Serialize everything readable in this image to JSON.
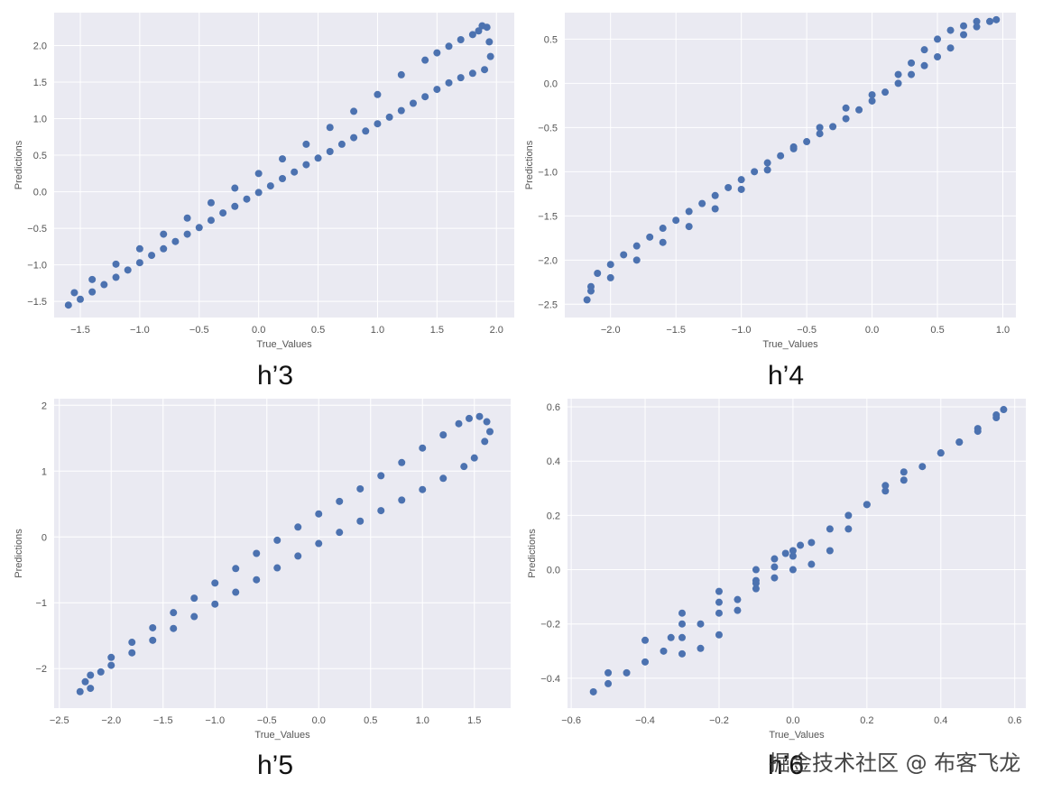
{
  "captions": [
    "h’3",
    "h’4",
    "h’5",
    "h’6"
  ],
  "watermark": "掘金技术社区 @ 布客飞龙",
  "style": {
    "panel_bg": "#eaeaf2",
    "grid": "#ffffff",
    "marker": "#4c72b0",
    "tick_text": "#555555"
  },
  "chart_data": [
    {
      "type": "scatter",
      "title": "",
      "xlabel": "True_Values",
      "ylabel": "Predictions",
      "xlim": [
        -1.72,
        2.15
      ],
      "ylim": [
        -1.72,
        2.45
      ],
      "xticks": [
        -1.5,
        -1.0,
        -0.5,
        0.0,
        0.5,
        1.0,
        1.5,
        2.0
      ],
      "xtick_labels": [
        "−1.5",
        "−1.0",
        "−0.5",
        "0.0",
        "0.5",
        "1.0",
        "1.5",
        "2.0"
      ],
      "yticks": [
        -1.5,
        -1.0,
        -0.5,
        0.0,
        0.5,
        1.0,
        1.5,
        2.0
      ],
      "ytick_labels": [
        "−1.5",
        "−1.0",
        "−0.5",
        "0.0",
        "0.5",
        "1.0",
        "1.5",
        "2.0"
      ],
      "grid": true,
      "series": [
        {
          "points": [
            [
              -1.6,
              -1.55
            ],
            [
              -1.5,
              -1.47
            ],
            [
              -1.4,
              -1.37
            ],
            [
              -1.3,
              -1.27
            ],
            [
              -1.2,
              -1.17
            ],
            [
              -1.1,
              -1.07
            ],
            [
              -1.0,
              -0.97
            ],
            [
              -0.9,
              -0.87
            ],
            [
              -0.8,
              -0.78
            ],
            [
              -0.7,
              -0.68
            ],
            [
              -0.6,
              -0.58
            ],
            [
              -0.5,
              -0.49
            ],
            [
              -0.4,
              -0.39
            ],
            [
              -0.3,
              -0.29
            ],
            [
              -0.2,
              -0.2
            ],
            [
              -0.1,
              -0.1
            ],
            [
              0.0,
              -0.01
            ],
            [
              0.1,
              0.08
            ],
            [
              0.2,
              0.18
            ],
            [
              0.3,
              0.27
            ],
            [
              0.4,
              0.37
            ],
            [
              0.5,
              0.46
            ],
            [
              0.6,
              0.55
            ],
            [
              0.7,
              0.65
            ],
            [
              0.8,
              0.74
            ],
            [
              0.9,
              0.83
            ],
            [
              1.0,
              0.93
            ],
            [
              1.1,
              1.02
            ],
            [
              1.2,
              1.11
            ],
            [
              1.3,
              1.21
            ],
            [
              1.4,
              1.3
            ],
            [
              1.5,
              1.4
            ],
            [
              1.6,
              1.49
            ],
            [
              1.7,
              1.56
            ],
            [
              1.8,
              1.62
            ],
            [
              1.9,
              1.67
            ],
            [
              1.95,
              1.85
            ],
            [
              1.94,
              2.05
            ],
            [
              1.92,
              2.25
            ],
            [
              1.88,
              2.27
            ],
            [
              1.85,
              2.2
            ],
            [
              1.8,
              2.15
            ],
            [
              1.7,
              2.08
            ],
            [
              1.6,
              1.99
            ],
            [
              1.5,
              1.9
            ],
            [
              1.4,
              1.8
            ],
            [
              1.2,
              1.6
            ],
            [
              1.0,
              1.33
            ],
            [
              0.8,
              1.1
            ],
            [
              0.6,
              0.88
            ],
            [
              0.4,
              0.65
            ],
            [
              0.2,
              0.45
            ],
            [
              0.0,
              0.25
            ],
            [
              -0.2,
              0.05
            ],
            [
              -0.4,
              -0.15
            ],
            [
              -0.6,
              -0.36
            ],
            [
              -0.8,
              -0.58
            ],
            [
              -1.0,
              -0.78
            ],
            [
              -1.2,
              -0.99
            ],
            [
              -1.4,
              -1.2
            ],
            [
              -1.55,
              -1.38
            ]
          ]
        }
      ]
    },
    {
      "type": "scatter",
      "title": "",
      "xlabel": "True_Values",
      "ylabel": "Predictions",
      "xlim": [
        -2.35,
        1.1
      ],
      "ylim": [
        -2.65,
        0.8
      ],
      "xticks": [
        -2.0,
        -1.5,
        -1.0,
        -0.5,
        0.0,
        0.5,
        1.0
      ],
      "xtick_labels": [
        "−2.0",
        "−1.5",
        "−1.0",
        "−0.5",
        "0.0",
        "0.5",
        "1.0"
      ],
      "yticks": [
        -2.5,
        -2.0,
        -1.5,
        -1.0,
        -0.5,
        0.0,
        0.5
      ],
      "ytick_labels": [
        "−2.5",
        "−2.0",
        "−1.5",
        "−1.0",
        "−0.5",
        "0.0",
        "0.5"
      ],
      "grid": true,
      "series": [
        {
          "points": [
            [
              -2.18,
              -2.45
            ],
            [
              -2.15,
              -2.3
            ],
            [
              -2.1,
              -2.15
            ],
            [
              -2.0,
              -2.05
            ],
            [
              -1.9,
              -1.94
            ],
            [
              -1.8,
              -1.84
            ],
            [
              -1.7,
              -1.74
            ],
            [
              -1.6,
              -1.64
            ],
            [
              -1.5,
              -1.55
            ],
            [
              -1.4,
              -1.45
            ],
            [
              -1.3,
              -1.36
            ],
            [
              -1.2,
              -1.27
            ],
            [
              -1.1,
              -1.18
            ],
            [
              -1.0,
              -1.09
            ],
            [
              -0.9,
              -1.0
            ],
            [
              -0.8,
              -0.9
            ],
            [
              -0.7,
              -0.82
            ],
            [
              -0.6,
              -0.74
            ],
            [
              -0.5,
              -0.66
            ],
            [
              -0.4,
              -0.57
            ],
            [
              -0.3,
              -0.49
            ],
            [
              -0.2,
              -0.4
            ],
            [
              -0.1,
              -0.3
            ],
            [
              0.0,
              -0.2
            ],
            [
              0.1,
              -0.1
            ],
            [
              0.2,
              0.0
            ],
            [
              0.3,
              0.1
            ],
            [
              0.4,
              0.2
            ],
            [
              0.5,
              0.3
            ],
            [
              0.6,
              0.4
            ],
            [
              0.7,
              0.55
            ],
            [
              0.8,
              0.64
            ],
            [
              0.9,
              0.7
            ],
            [
              0.95,
              0.72
            ],
            [
              0.8,
              0.7
            ],
            [
              0.7,
              0.65
            ],
            [
              0.6,
              0.6
            ],
            [
              0.5,
              0.5
            ],
            [
              0.4,
              0.38
            ],
            [
              0.3,
              0.23
            ],
            [
              0.2,
              0.1
            ],
            [
              0.0,
              -0.13
            ],
            [
              -0.2,
              -0.28
            ],
            [
              -0.4,
              -0.5
            ],
            [
              -0.6,
              -0.72
            ],
            [
              -0.8,
              -0.98
            ],
            [
              -1.0,
              -1.2
            ],
            [
              -1.2,
              -1.42
            ],
            [
              -1.4,
              -1.62
            ],
            [
              -1.6,
              -1.8
            ],
            [
              -1.8,
              -2.0
            ],
            [
              -2.0,
              -2.2
            ],
            [
              -2.15,
              -2.35
            ]
          ]
        }
      ]
    },
    {
      "type": "scatter",
      "title": "",
      "xlabel": "True_Values",
      "ylabel": "Predictions",
      "xlim": [
        -2.55,
        1.85
      ],
      "ylim": [
        -2.6,
        2.1
      ],
      "xticks": [
        -2.5,
        -2.0,
        -1.5,
        -1.0,
        -0.5,
        0.0,
        0.5,
        1.0,
        1.5
      ],
      "xtick_labels": [
        "−2.5",
        "−2.0",
        "−1.5",
        "−1.0",
        "−0.5",
        "0.0",
        "0.5",
        "1.0",
        "1.5"
      ],
      "yticks": [
        -2,
        -1,
        0,
        1,
        2
      ],
      "ytick_labels": [
        "−2",
        "−1",
        "0",
        "1",
        "2"
      ],
      "grid": true,
      "series": [
        {
          "points": [
            [
              -2.3,
              -2.35
            ],
            [
              -2.25,
              -2.2
            ],
            [
              -2.2,
              -2.1
            ],
            [
              -2.0,
              -1.95
            ],
            [
              -1.8,
              -1.76
            ],
            [
              -1.6,
              -1.57
            ],
            [
              -1.4,
              -1.39
            ],
            [
              -1.2,
              -1.21
            ],
            [
              -1.0,
              -1.02
            ],
            [
              -0.8,
              -0.84
            ],
            [
              -0.6,
              -0.65
            ],
            [
              -0.4,
              -0.47
            ],
            [
              -0.2,
              -0.29
            ],
            [
              0.0,
              -0.1
            ],
            [
              0.2,
              0.07
            ],
            [
              0.4,
              0.24
            ],
            [
              0.6,
              0.4
            ],
            [
              0.8,
              0.56
            ],
            [
              1.0,
              0.72
            ],
            [
              1.2,
              0.89
            ],
            [
              1.4,
              1.07
            ],
            [
              1.5,
              1.2
            ],
            [
              1.6,
              1.45
            ],
            [
              1.65,
              1.6
            ],
            [
              1.62,
              1.75
            ],
            [
              1.55,
              1.83
            ],
            [
              1.45,
              1.8
            ],
            [
              1.35,
              1.72
            ],
            [
              1.2,
              1.55
            ],
            [
              1.0,
              1.35
            ],
            [
              0.8,
              1.13
            ],
            [
              0.6,
              0.93
            ],
            [
              0.4,
              0.73
            ],
            [
              0.2,
              0.54
            ],
            [
              0.0,
              0.35
            ],
            [
              -0.2,
              0.15
            ],
            [
              -0.4,
              -0.05
            ],
            [
              -0.6,
              -0.25
            ],
            [
              -0.8,
              -0.48
            ],
            [
              -1.0,
              -0.7
            ],
            [
              -1.2,
              -0.93
            ],
            [
              -1.4,
              -1.15
            ],
            [
              -1.6,
              -1.38
            ],
            [
              -1.8,
              -1.6
            ],
            [
              -2.0,
              -1.83
            ],
            [
              -2.1,
              -2.05
            ],
            [
              -2.2,
              -2.3
            ]
          ]
        }
      ]
    },
    {
      "type": "scatter",
      "title": "",
      "xlabel": "True_Values",
      "ylabel": "Predictions",
      "xlim": [
        -0.61,
        0.63
      ],
      "ylim": [
        -0.51,
        0.63
      ],
      "xticks": [
        -0.6,
        -0.4,
        -0.2,
        0.0,
        0.2,
        0.4,
        0.6
      ],
      "xtick_labels": [
        "−0.6",
        "−0.4",
        "−0.2",
        "0.0",
        "0.2",
        "0.4",
        "0.6"
      ],
      "yticks": [
        -0.4,
        -0.2,
        0.0,
        0.2,
        0.4,
        0.6
      ],
      "ytick_labels": [
        "−0.4",
        "−0.2",
        "0.0",
        "0.2",
        "0.4",
        "0.6"
      ],
      "grid": true,
      "series": [
        {
          "points": [
            [
              -0.54,
              -0.45
            ],
            [
              -0.5,
              -0.42
            ],
            [
              -0.45,
              -0.38
            ],
            [
              -0.4,
              -0.34
            ],
            [
              -0.35,
              -0.3
            ],
            [
              -0.3,
              -0.25
            ],
            [
              -0.25,
              -0.2
            ],
            [
              -0.2,
              -0.16
            ],
            [
              -0.15,
              -0.11
            ],
            [
              -0.1,
              -0.04
            ],
            [
              -0.05,
              0.01
            ],
            [
              0.0,
              0.05
            ],
            [
              0.05,
              0.1
            ],
            [
              0.1,
              0.15
            ],
            [
              0.15,
              0.2
            ],
            [
              0.2,
              0.24
            ],
            [
              0.25,
              0.29
            ],
            [
              0.3,
              0.33
            ],
            [
              0.35,
              0.38
            ],
            [
              0.4,
              0.43
            ],
            [
              0.45,
              0.47
            ],
            [
              0.5,
              0.52
            ],
            [
              0.55,
              0.57
            ],
            [
              0.57,
              0.59
            ],
            [
              0.55,
              0.56
            ],
            [
              0.5,
              0.51
            ],
            [
              0.45,
              0.47
            ],
            [
              0.4,
              0.43
            ],
            [
              0.3,
              0.36
            ],
            [
              0.25,
              0.31
            ],
            [
              0.2,
              0.24
            ],
            [
              0.15,
              0.15
            ],
            [
              0.1,
              0.07
            ],
            [
              0.05,
              0.02
            ],
            [
              0.0,
              0.0
            ],
            [
              -0.05,
              -0.03
            ],
            [
              -0.1,
              -0.07
            ],
            [
              -0.15,
              -0.15
            ],
            [
              -0.2,
              -0.24
            ],
            [
              -0.25,
              -0.29
            ],
            [
              -0.3,
              -0.31
            ],
            [
              -0.33,
              -0.25
            ],
            [
              -0.3,
              -0.2
            ],
            [
              -0.2,
              -0.12
            ],
            [
              -0.1,
              -0.05
            ],
            [
              -0.05,
              0.04
            ],
            [
              0.0,
              0.07
            ],
            [
              0.02,
              0.09
            ],
            [
              -0.02,
              0.06
            ],
            [
              -0.1,
              0.0
            ],
            [
              -0.2,
              -0.08
            ],
            [
              -0.3,
              -0.16
            ],
            [
              -0.4,
              -0.26
            ],
            [
              -0.5,
              -0.38
            ]
          ]
        }
      ]
    }
  ]
}
